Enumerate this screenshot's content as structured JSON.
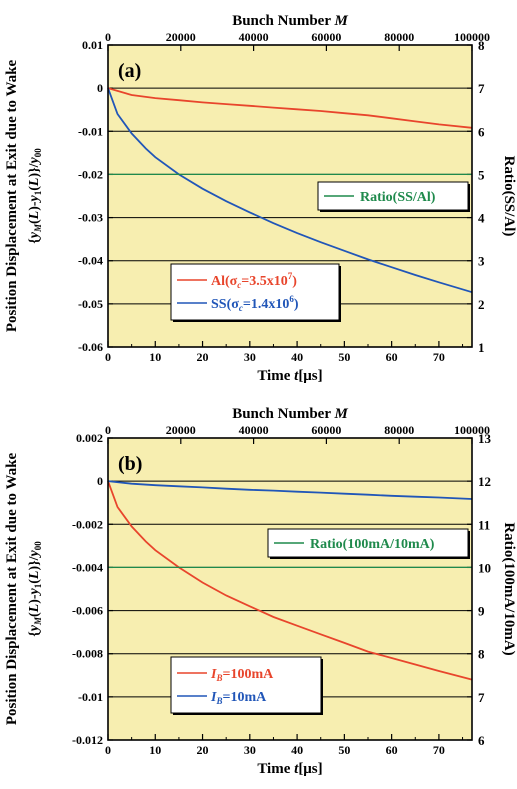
{
  "chart_data": [
    {
      "type": "line",
      "panel_label": "(a)",
      "top_axis": {
        "label": "Bunch Number M",
        "ticks": [
          "0",
          "20000",
          "40000",
          "60000",
          "80000",
          "100000"
        ],
        "range": [
          0,
          100000
        ]
      },
      "xlabel": "Time t[μs]",
      "xlim": [
        0,
        77
      ],
      "xticks": [
        0,
        10,
        20,
        30,
        40,
        50,
        60,
        70
      ],
      "ylabel_left_outer": "Position Displacement at Exit due to Wake",
      "ylabel_left": "{y_M(L)-y_1(L)}/y_00",
      "ylim": [
        -0.06,
        0.01
      ],
      "yticks": [
        "0.01",
        "0",
        "-0.01",
        "-0.02",
        "-0.03",
        "-0.04",
        "-0.05",
        "-0.06"
      ],
      "ylabel_right": "Ratio(SS/Al)",
      "y2lim": [
        1,
        8
      ],
      "y2ticks": [
        "8",
        "7",
        "6",
        "5",
        "4",
        "3",
        "2",
        "1"
      ],
      "grid": "horizontal",
      "background": "#f7eeb0",
      "series": [
        {
          "name": "Al(σc=3.5x10^7)",
          "label": "Al(σ",
          "sub": "c",
          "label_rest": "=3.5x10",
          "sup": "7",
          "close": ")",
          "color": "#e8452c",
          "axis": "left",
          "x": [
            0,
            5,
            10,
            15,
            20,
            25,
            30,
            35,
            40,
            45,
            50,
            55,
            60,
            65,
            70,
            77
          ],
          "y": [
            0,
            -0.0016,
            -0.0023,
            -0.0028,
            -0.0033,
            -0.0037,
            -0.0041,
            -0.0045,
            -0.0049,
            -0.0053,
            -0.0058,
            -0.0063,
            -0.007,
            -0.0077,
            -0.0084,
            -0.0092
          ]
        },
        {
          "name": "SS(σc=1.4x10^6)",
          "label": "SS(σ",
          "sub": "c",
          "label_rest": "=1.4x10",
          "sup": "6",
          "close": ")",
          "color": "#2156b8",
          "axis": "left",
          "x": [
            0,
            2,
            5,
            8,
            10,
            15,
            20,
            25,
            30,
            35,
            40,
            45,
            50,
            55,
            60,
            65,
            70,
            77
          ],
          "y": [
            0,
            -0.006,
            -0.0105,
            -0.014,
            -0.016,
            -0.02,
            -0.0233,
            -0.0262,
            -0.0288,
            -0.0313,
            -0.0336,
            -0.0357,
            -0.0377,
            -0.0397,
            -0.0415,
            -0.0433,
            -0.045,
            -0.0473
          ]
        },
        {
          "name": "Ratio(SS/Al)",
          "label": "Ratio(SS/Al)",
          "color": "#1f8a4c",
          "axis": "right",
          "x": [
            0,
            77
          ],
          "y": [
            5,
            5
          ]
        }
      ]
    },
    {
      "type": "line",
      "panel_label": "(b)",
      "top_axis": {
        "label": "Bunch Number M",
        "ticks": [
          "0",
          "20000",
          "40000",
          "60000",
          "80000",
          "100000"
        ],
        "range": [
          0,
          100000
        ]
      },
      "xlabel": "Time t[μs]",
      "xlim": [
        0,
        77
      ],
      "xticks": [
        0,
        10,
        20,
        30,
        40,
        50,
        60,
        70
      ],
      "ylabel_left_outer": "Position Displacement at Exit due to Wake",
      "ylabel_left": "{y_M(L)-y_1(L)}/y_00",
      "ylim": [
        -0.012,
        0.002
      ],
      "yticks": [
        "0.002",
        "0",
        "-0.002",
        "-0.004",
        "-0.006",
        "-0.008",
        "-0.01",
        "-0.012"
      ],
      "ylabel_right": "Ratio(100mA/10mA)",
      "y2lim": [
        6,
        13
      ],
      "y2ticks": [
        "13",
        "12",
        "11",
        "10",
        "9",
        "8",
        "7",
        "6"
      ],
      "grid": "horizontal",
      "background": "#f7eeb0",
      "series": [
        {
          "name": "IB=100mA",
          "label": "I",
          "sub": "B",
          "label_rest": "=100mA",
          "color": "#e8452c",
          "axis": "left",
          "x": [
            0,
            2,
            5,
            8,
            10,
            15,
            20,
            25,
            30,
            35,
            40,
            45,
            50,
            55,
            60,
            65,
            70,
            77
          ],
          "y": [
            0,
            -0.0012,
            -0.0021,
            -0.0028,
            -0.0032,
            -0.004,
            -0.0047,
            -0.0053,
            -0.0058,
            -0.0063,
            -0.0067,
            -0.0071,
            -0.0075,
            -0.0079,
            -0.0082,
            -0.0085,
            -0.0088,
            -0.0092
          ]
        },
        {
          "name": "IB=10mA",
          "label": "I",
          "sub": "B",
          "label_rest": "=10mA",
          "color": "#2156b8",
          "axis": "left",
          "x": [
            0,
            5,
            10,
            15,
            20,
            25,
            30,
            35,
            40,
            45,
            50,
            55,
            60,
            65,
            70,
            77
          ],
          "y": [
            0,
            -0.00012,
            -0.00019,
            -0.00024,
            -0.00029,
            -0.00035,
            -0.0004,
            -0.00044,
            -0.00049,
            -0.00053,
            -0.00058,
            -0.00063,
            -0.00068,
            -0.00072,
            -0.00076,
            -0.00083
          ]
        },
        {
          "name": "Ratio(100mA/10mA)",
          "label": "Ratio(100mA/10mA)",
          "color": "#1f8a4c",
          "axis": "right",
          "x": [
            0,
            77
          ],
          "y": [
            10,
            10
          ]
        }
      ]
    }
  ]
}
